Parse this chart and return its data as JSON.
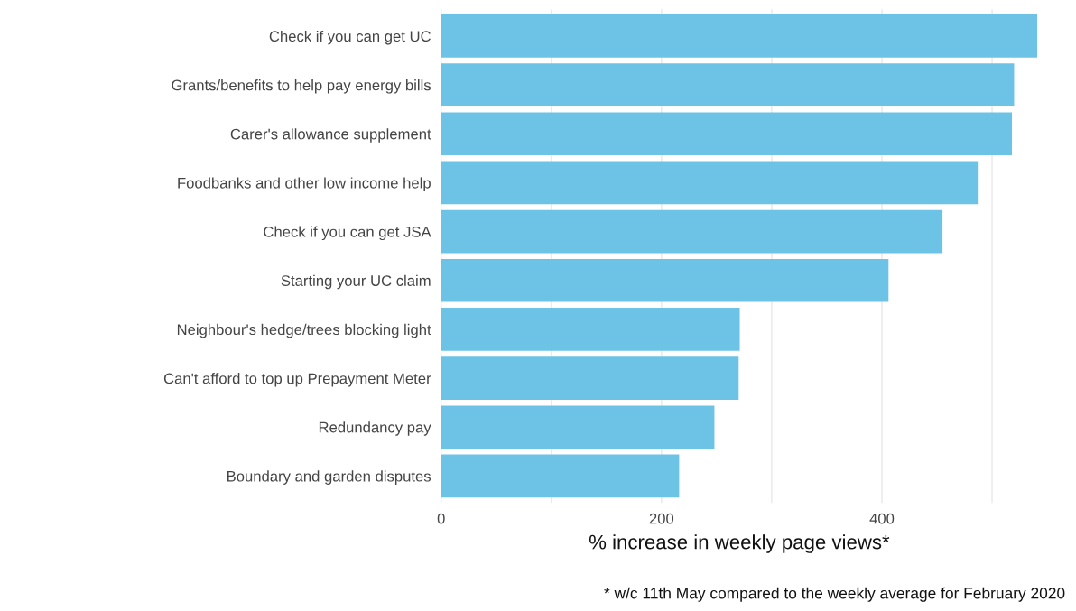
{
  "chart_data": {
    "type": "bar",
    "orientation": "horizontal",
    "categories": [
      "Check if you can get UC",
      "Grants/benefits to help pay energy bills",
      "Carer's allowance supplement",
      "Foodbanks and other low income help",
      "Check if you can get JSA",
      "Starting your UC claim",
      "Neighbour's hedge/trees blocking light",
      "Can't afford to top up Prepayment Meter",
      "Redundancy pay",
      "Boundary and garden disputes"
    ],
    "values": [
      541,
      520,
      518,
      487,
      455,
      406,
      271,
      270,
      248,
      216
    ],
    "color": "#6cc3e6",
    "xlabel": "% increase in weekly page views*",
    "annotations": [
      "* w/c 11th May compared to the weekly average for February 2020"
    ],
    "xticks": [
      0,
      {
        "value": 100,
        "label": null
      },
      200,
      {
        "value": 300,
        "label": null
      },
      400,
      {
        "value": 500,
        "label": null
      }
    ],
    "xlim": [
      0,
      541
    ],
    "grid": "x"
  }
}
